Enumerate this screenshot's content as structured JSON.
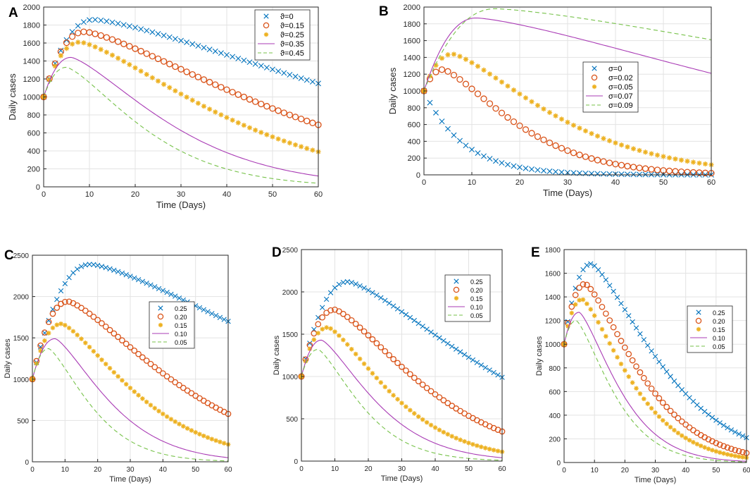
{
  "colors": {
    "s0": "#0072BD",
    "s1": "#D95319",
    "s2": "#EDB120",
    "s3": "#A93BB5",
    "s4": "#77C24A"
  },
  "chart_data": [
    {
      "panel": "A",
      "type": "line",
      "xlabel": "Time (Days)",
      "ylabel": "Daily cases",
      "xlim": [
        0,
        60
      ],
      "ylim": [
        0,
        2000
      ],
      "xticks": [
        0,
        10,
        20,
        30,
        40,
        50,
        60
      ],
      "yticks": [
        0,
        200,
        400,
        600,
        800,
        1000,
        1200,
        1400,
        1600,
        1800,
        2000
      ],
      "grid": true,
      "legend_position": "top-right",
      "series": [
        {
          "name": "ϑ=0",
          "marker": "x",
          "start": 1000,
          "peak_day": 11,
          "peak": 1860,
          "end": 1150
        },
        {
          "name": "ϑ=0.15",
          "marker": "o",
          "start": 1000,
          "peak_day": 9,
          "peak": 1725,
          "end": 690
        },
        {
          "name": "ϑ=0.25",
          "marker": "*",
          "start": 1000,
          "peak_day": 8,
          "peak": 1610,
          "end": 390
        },
        {
          "name": "ϑ=0.35",
          "marker": "solid",
          "start": 1000,
          "peak_day": 6,
          "peak": 1440,
          "end": 120
        },
        {
          "name": "ϑ=0.45",
          "marker": "dashed",
          "start": 1000,
          "peak_day": 5,
          "peak": 1330,
          "end": 40
        }
      ]
    },
    {
      "panel": "B",
      "type": "line",
      "xlabel": "Time (Days)",
      "ylabel": "Daily cases",
      "xlim": [
        0,
        60
      ],
      "ylim": [
        0,
        2000
      ],
      "xticks": [
        0,
        10,
        20,
        30,
        40,
        50,
        60
      ],
      "yticks": [
        0,
        200,
        400,
        600,
        800,
        1000,
        1200,
        1400,
        1600,
        1800,
        2000
      ],
      "grid": true,
      "legend_position": "center-right",
      "series": [
        {
          "name": "σ=0",
          "marker": "x",
          "start": 1000,
          "peak_day": 0,
          "peak": 1000,
          "end": 0
        },
        {
          "name": "σ=0.02",
          "marker": "o",
          "start": 1000,
          "peak_day": 4,
          "peak": 1255,
          "end": 20
        },
        {
          "name": "σ=0.05",
          "marker": "*",
          "start": 1000,
          "peak_day": 6,
          "peak": 1440,
          "end": 120
        },
        {
          "name": "σ=0.07",
          "marker": "solid",
          "start": 1000,
          "peak_day": 11,
          "peak": 1870,
          "end": 1210
        },
        {
          "name": "σ=0.09",
          "marker": "dashed",
          "start": 1000,
          "peak_day": 15,
          "peak": 1980,
          "end": 1610
        }
      ]
    },
    {
      "panel": "C",
      "type": "line",
      "xlabel": "Time (Days)",
      "ylabel": "Daily cases",
      "xlim": [
        0,
        60
      ],
      "ylim": [
        0,
        2500
      ],
      "xticks": [
        0,
        10,
        20,
        30,
        40,
        50,
        60
      ],
      "yticks": [
        0,
        500,
        1000,
        1500,
        2000,
        2500
      ],
      "grid": true,
      "legend_position": "center-right",
      "series": [
        {
          "name": "0.25",
          "marker": "x",
          "start": 1000,
          "peak_day": 18,
          "peak": 2390,
          "end": 1700
        },
        {
          "name": "0.20",
          "marker": "o",
          "start": 1000,
          "peak_day": 11,
          "peak": 1940,
          "end": 580
        },
        {
          "name": "0.15",
          "marker": "*",
          "start": 1000,
          "peak_day": 9,
          "peak": 1670,
          "end": 210
        },
        {
          "name": "0.10",
          "marker": "solid",
          "start": 1000,
          "peak_day": 7,
          "peak": 1490,
          "end": 50
        },
        {
          "name": "0.05",
          "marker": "dashed",
          "start": 1000,
          "peak_day": 5,
          "peak": 1370,
          "end": 10
        }
      ]
    },
    {
      "panel": "D",
      "type": "line",
      "xlabel": "Time (Days)",
      "ylabel": "Daily cases",
      "xlim": [
        0,
        60
      ],
      "ylim": [
        0,
        2500
      ],
      "xticks": [
        0,
        10,
        20,
        30,
        40,
        50,
        60
      ],
      "yticks": [
        0,
        500,
        1000,
        1500,
        2000,
        2500
      ],
      "grid": true,
      "legend_position": "top-right",
      "series": [
        {
          "name": "0.25",
          "marker": "x",
          "start": 1000,
          "peak_day": 14,
          "peak": 2120,
          "end": 990
        },
        {
          "name": "0.20",
          "marker": "o",
          "start": 1000,
          "peak_day": 10,
          "peak": 1790,
          "end": 350
        },
        {
          "name": "0.15",
          "marker": "*",
          "start": 1000,
          "peak_day": 8,
          "peak": 1580,
          "end": 110
        },
        {
          "name": "0.10",
          "marker": "solid",
          "start": 1000,
          "peak_day": 6,
          "peak": 1430,
          "end": 40
        },
        {
          "name": "0.05",
          "marker": "dashed",
          "start": 1000,
          "peak_day": 5,
          "peak": 1320,
          "end": 10
        }
      ]
    },
    {
      "panel": "E",
      "type": "line",
      "xlabel": "Time (Days)",
      "ylabel": "Daily cases",
      "xlim": [
        0,
        60
      ],
      "ylim": [
        0,
        1800
      ],
      "xticks": [
        0,
        10,
        20,
        30,
        40,
        50,
        60
      ],
      "yticks": [
        0,
        200,
        400,
        600,
        800,
        1000,
        1200,
        1400,
        1600,
        1800
      ],
      "grid": true,
      "legend_position": "top-right",
      "series": [
        {
          "name": "0.25",
          "marker": "x",
          "start": 1000,
          "peak_day": 9,
          "peak": 1680,
          "end": 210
        },
        {
          "name": "0.20",
          "marker": "o",
          "start": 1000,
          "peak_day": 7,
          "peak": 1510,
          "end": 80
        },
        {
          "name": "0.15",
          "marker": "*",
          "start": 1000,
          "peak_day": 6,
          "peak": 1380,
          "end": 40
        },
        {
          "name": "0.10",
          "marker": "solid",
          "start": 1000,
          "peak_day": 5,
          "peak": 1270,
          "end": 10
        },
        {
          "name": "0.05",
          "marker": "dashed",
          "start": 1000,
          "peak_day": 4,
          "peak": 1200,
          "end": 5
        }
      ]
    }
  ]
}
